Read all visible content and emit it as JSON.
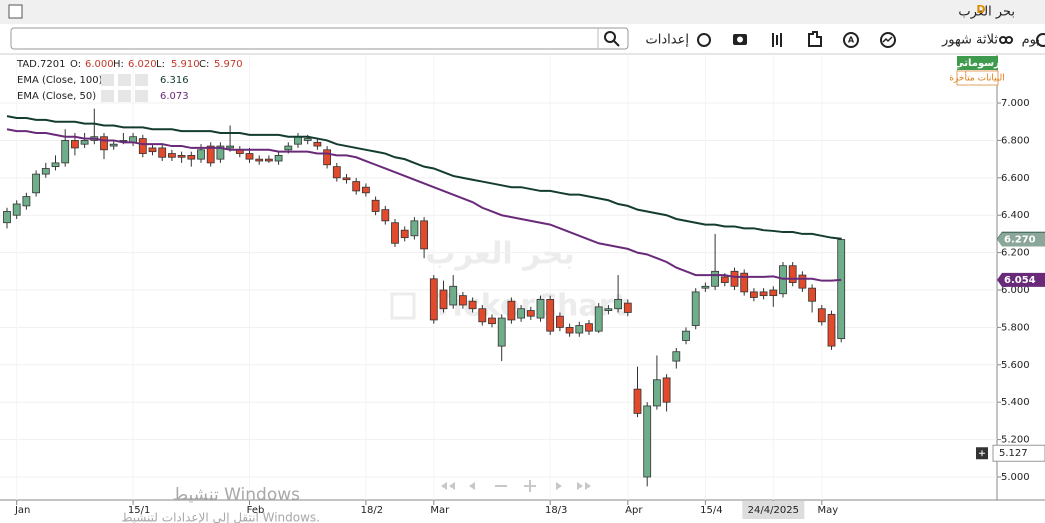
{
  "window": {
    "title": "بحر العرب",
    "badge": "D"
  },
  "toolbar": {
    "period": "يوم",
    "range": "ثلاثة شهور",
    "settings": "إعدادات"
  },
  "side": {
    "drawings": "رسوماتي",
    "delayed": "البيانات متأخرة"
  },
  "watermark": {
    "arabic": "بحر العرب",
    "latin": "TickerChart"
  },
  "os_overlay": {
    "line1": "تنشيط Windows",
    "line2": "انتقل إلى الإعدادات لتنشيط Windows."
  },
  "chart_data": {
    "type": "candlestick",
    "symbol": "TAD.7201",
    "legend_fields": [
      {
        "key": "O:",
        "value": "6.000"
      },
      {
        "key": "H:",
        "value": "6.020"
      },
      {
        "key": "L:",
        "value": "5.910"
      },
      {
        "key": "C:",
        "value": "5.970"
      }
    ],
    "categories": [
      null,
      "Jan",
      null,
      null,
      null,
      null,
      null,
      null,
      null,
      null,
      null,
      null,
      null,
      "15/1",
      null,
      null,
      null,
      null,
      null,
      null,
      null,
      null,
      null,
      null,
      null,
      "Feb",
      null,
      null,
      null,
      null,
      null,
      null,
      null,
      null,
      null,
      null,
      null,
      "18/2",
      null,
      null,
      null,
      null,
      null,
      null,
      "Mar",
      null,
      null,
      null,
      null,
      null,
      null,
      null,
      null,
      null,
      null,
      null,
      "18/3",
      null,
      null,
      null,
      null,
      null,
      null,
      null,
      "Apr",
      null,
      null,
      null,
      null,
      null,
      null,
      null,
      "15/4",
      null,
      null,
      null,
      null,
      null,
      null,
      "24/4/2025",
      null,
      null,
      null,
      null,
      "May",
      null,
      null
    ],
    "ohlc": [
      [
        6.36,
        6.44,
        6.33,
        6.42
      ],
      [
        6.4,
        6.48,
        6.38,
        6.46
      ],
      [
        6.45,
        6.52,
        6.43,
        6.5
      ],
      [
        6.52,
        6.64,
        6.5,
        6.62
      ],
      [
        6.62,
        6.68,
        6.6,
        6.65
      ],
      [
        6.66,
        6.72,
        6.64,
        6.68
      ],
      [
        6.68,
        6.86,
        6.66,
        6.8
      ],
      [
        6.8,
        6.84,
        6.72,
        6.76
      ],
      [
        6.78,
        6.84,
        6.76,
        6.8
      ],
      [
        6.8,
        6.97,
        6.78,
        6.82
      ],
      [
        6.82,
        6.84,
        6.7,
        6.75
      ],
      [
        6.77,
        6.8,
        6.75,
        6.78
      ],
      [
        6.8,
        6.84,
        6.78,
        6.8
      ],
      [
        6.79,
        6.84,
        6.77,
        6.82
      ],
      [
        6.81,
        6.83,
        6.71,
        6.73
      ],
      [
        6.76,
        6.78,
        6.72,
        6.74
      ],
      [
        6.76,
        6.78,
        6.69,
        6.71
      ],
      [
        6.73,
        6.75,
        6.69,
        6.71
      ],
      [
        6.72,
        6.74,
        6.68,
        6.71
      ],
      [
        6.72,
        6.74,
        6.66,
        6.7
      ],
      [
        6.7,
        6.78,
        6.68,
        6.75
      ],
      [
        6.77,
        6.79,
        6.66,
        6.68
      ],
      [
        6.7,
        6.79,
        6.68,
        6.77
      ],
      [
        6.76,
        6.88,
        6.74,
        6.77
      ],
      [
        6.75,
        6.77,
        6.71,
        6.73
      ],
      [
        6.73,
        6.76,
        6.68,
        6.7
      ],
      [
        6.7,
        6.72,
        6.67,
        6.69
      ],
      [
        6.7,
        6.72,
        6.68,
        6.69
      ],
      [
        6.69,
        6.74,
        6.67,
        6.72
      ],
      [
        6.75,
        6.79,
        6.73,
        6.77
      ],
      [
        6.78,
        6.84,
        6.76,
        6.82
      ],
      [
        6.8,
        6.83,
        6.78,
        6.81
      ],
      [
        6.79,
        6.81,
        6.75,
        6.77
      ],
      [
        6.75,
        6.77,
        6.65,
        6.67
      ],
      [
        6.66,
        6.68,
        6.58,
        6.6
      ],
      [
        6.6,
        6.62,
        6.57,
        6.59
      ],
      [
        6.58,
        6.6,
        6.51,
        6.53
      ],
      [
        6.55,
        6.57,
        6.5,
        6.52
      ],
      [
        6.48,
        6.5,
        6.4,
        6.42
      ],
      [
        6.43,
        6.45,
        6.35,
        6.37
      ],
      [
        6.36,
        6.38,
        6.23,
        6.25
      ],
      [
        6.32,
        6.34,
        6.26,
        6.28
      ],
      [
        6.29,
        6.39,
        6.27,
        6.37
      ],
      [
        6.37,
        6.39,
        6.17,
        6.22
      ],
      [
        6.06,
        6.08,
        5.82,
        5.84
      ],
      [
        6.0,
        6.05,
        5.88,
        5.9
      ],
      [
        5.92,
        6.08,
        5.9,
        6.02
      ],
      [
        5.97,
        5.99,
        5.9,
        5.92
      ],
      [
        5.94,
        5.96,
        5.88,
        5.9
      ],
      [
        5.9,
        5.92,
        5.81,
        5.83
      ],
      [
        5.85,
        5.87,
        5.8,
        5.82
      ],
      [
        5.7,
        5.87,
        5.62,
        5.85
      ],
      [
        5.94,
        5.96,
        5.82,
        5.84
      ],
      [
        5.85,
        5.92,
        5.83,
        5.9
      ],
      [
        5.89,
        5.91,
        5.84,
        5.86
      ],
      [
        5.85,
        5.97,
        5.83,
        5.95
      ],
      [
        5.95,
        5.97,
        5.76,
        5.78
      ],
      [
        5.86,
        5.88,
        5.78,
        5.8
      ],
      [
        5.8,
        5.82,
        5.75,
        5.77
      ],
      [
        5.77,
        5.83,
        5.75,
        5.81
      ],
      [
        5.82,
        5.84,
        5.76,
        5.78
      ],
      [
        5.78,
        5.93,
        5.77,
        5.91
      ],
      [
        5.89,
        5.92,
        5.87,
        5.9
      ],
      [
        5.9,
        6.08,
        5.88,
        5.95
      ],
      [
        5.93,
        5.95,
        5.86,
        5.88
      ],
      [
        5.47,
        5.59,
        5.32,
        5.34
      ],
      [
        5.0,
        5.4,
        4.95,
        5.38
      ],
      [
        5.38,
        5.65,
        5.36,
        5.52
      ],
      [
        5.53,
        5.55,
        5.35,
        5.4
      ],
      [
        5.62,
        5.69,
        5.58,
        5.67
      ],
      [
        5.73,
        5.8,
        5.71,
        5.78
      ],
      [
        5.81,
        6.01,
        5.79,
        5.99
      ],
      [
        6.01,
        6.04,
        5.99,
        6.02
      ],
      [
        6.02,
        6.3,
        6.0,
        6.1
      ],
      [
        6.07,
        6.09,
        6.02,
        6.04
      ],
      [
        6.1,
        6.12,
        6.0,
        6.02
      ],
      [
        6.09,
        6.11,
        5.97,
        5.99
      ],
      [
        5.99,
        6.01,
        5.94,
        5.96
      ],
      [
        5.99,
        6.01,
        5.95,
        5.97
      ],
      [
        6.0,
        6.02,
        5.91,
        5.97
      ],
      [
        5.98,
        6.15,
        5.96,
        6.13
      ],
      [
        6.13,
        6.15,
        6.02,
        6.04
      ],
      [
        6.08,
        6.1,
        5.99,
        6.01
      ],
      [
        6.01,
        6.03,
        5.88,
        5.94
      ],
      [
        5.9,
        5.92,
        5.81,
        5.83
      ],
      [
        5.87,
        5.89,
        5.68,
        5.7
      ],
      [
        5.74,
        6.28,
        5.72,
        6.27
      ]
    ],
    "up_color": "#6fae8a",
    "down_color": "#e24a2c",
    "last_close_label": "6.270",
    "last_close_color": "#8aa79a",
    "series": [
      {
        "name": "EMA",
        "params": "(Close, 100)",
        "legend_value": "6.316",
        "color": "#143c30",
        "values": [
          6.93,
          6.92,
          6.92,
          6.91,
          6.91,
          6.9,
          6.9,
          6.9,
          6.89,
          6.89,
          6.88,
          6.88,
          6.87,
          6.87,
          6.87,
          6.86,
          6.86,
          6.86,
          6.85,
          6.85,
          6.85,
          6.85,
          6.84,
          6.84,
          6.84,
          6.83,
          6.83,
          6.83,
          6.83,
          6.82,
          6.82,
          6.82,
          6.81,
          6.8,
          6.78,
          6.77,
          6.76,
          6.75,
          6.74,
          6.73,
          6.71,
          6.7,
          6.68,
          6.66,
          6.65,
          6.63,
          6.61,
          6.6,
          6.59,
          6.58,
          6.57,
          6.56,
          6.55,
          6.55,
          6.54,
          6.53,
          6.53,
          6.52,
          6.51,
          6.51,
          6.5,
          6.49,
          6.48,
          6.46,
          6.45,
          6.43,
          6.42,
          6.41,
          6.4,
          6.38,
          6.37,
          6.36,
          6.35,
          6.35,
          6.34,
          6.34,
          6.33,
          6.33,
          6.32,
          6.316,
          6.31,
          6.31,
          6.3,
          6.3,
          6.29,
          6.28,
          6.274
        ]
      },
      {
        "name": "EMA",
        "params": "(Close, 50)",
        "legend_value": "6.073",
        "color": "#6a2a7a",
        "values": [
          6.86,
          6.85,
          6.85,
          6.84,
          6.84,
          6.83,
          6.82,
          6.82,
          6.81,
          6.81,
          6.8,
          6.8,
          6.79,
          6.79,
          6.78,
          6.78,
          6.78,
          6.77,
          6.77,
          6.76,
          6.76,
          6.76,
          6.76,
          6.75,
          6.75,
          6.75,
          6.75,
          6.75,
          6.74,
          6.74,
          6.74,
          6.74,
          6.73,
          6.73,
          6.72,
          6.72,
          6.71,
          6.69,
          6.67,
          6.65,
          6.63,
          6.61,
          6.59,
          6.57,
          6.55,
          6.53,
          6.51,
          6.49,
          6.47,
          6.44,
          6.42,
          6.4,
          6.39,
          6.38,
          6.37,
          6.36,
          6.35,
          6.33,
          6.31,
          6.29,
          6.27,
          6.25,
          6.24,
          6.23,
          6.22,
          6.2,
          6.19,
          6.17,
          6.15,
          6.12,
          6.1,
          6.08,
          6.08,
          6.08,
          6.08,
          6.07,
          6.07,
          6.07,
          6.07,
          6.073,
          6.06,
          6.06,
          6.06,
          6.06,
          6.05,
          6.05,
          6.054
        ]
      }
    ],
    "crosshair": {
      "price": 5.127,
      "date": "24/4/2025"
    },
    "ylim": [
      4.893,
      7.257
    ],
    "yticks": [
      {
        "value": 5,
        "label": "5.000"
      },
      {
        "value": 5.2,
        "label": "5.200"
      },
      {
        "value": 5.4,
        "label": "5.400"
      },
      {
        "value": 5.6,
        "label": "5.600"
      },
      {
        "value": 5.8,
        "label": "5.800"
      },
      {
        "value": 6,
        "label": "6.000"
      },
      {
        "value": 6.2,
        "label": "6.200"
      },
      {
        "value": 6.4,
        "label": "6.400"
      },
      {
        "value": 6.6,
        "label": "6.600"
      },
      {
        "value": 6.8,
        "label": "6.800"
      },
      {
        "value": 7,
        "label": "7.000"
      }
    ],
    "grid": true
  }
}
